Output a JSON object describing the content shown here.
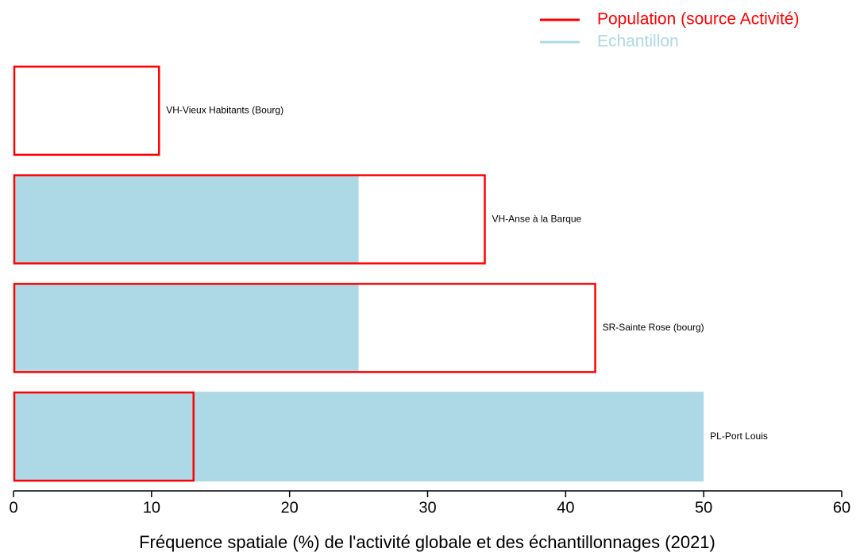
{
  "chart_data": {
    "type": "hbar",
    "xlabel": "Fréquence spatiale (%) de l'activité globale et des échantillonnages (2021)",
    "categories": [
      "VH-Vieux Habitants (Bourg)",
      "VH-Anse à la Barque",
      "SR-Sainte Rose (bourg)",
      "PL-Port Louis"
    ],
    "series": [
      {
        "name": "Population (source Activité)",
        "color": "#ff0000",
        "style": "outline",
        "values": [
          10.6,
          34.2,
          42.2,
          13.1
        ]
      },
      {
        "name": "Echantillon",
        "color": "#add8e6",
        "style": "filled",
        "values": [
          0,
          25,
          25,
          50
        ]
      }
    ],
    "xlim": [
      0,
      60
    ],
    "xticks": [
      0,
      10,
      20,
      30,
      40,
      50,
      60
    ],
    "legend": "top-right"
  }
}
